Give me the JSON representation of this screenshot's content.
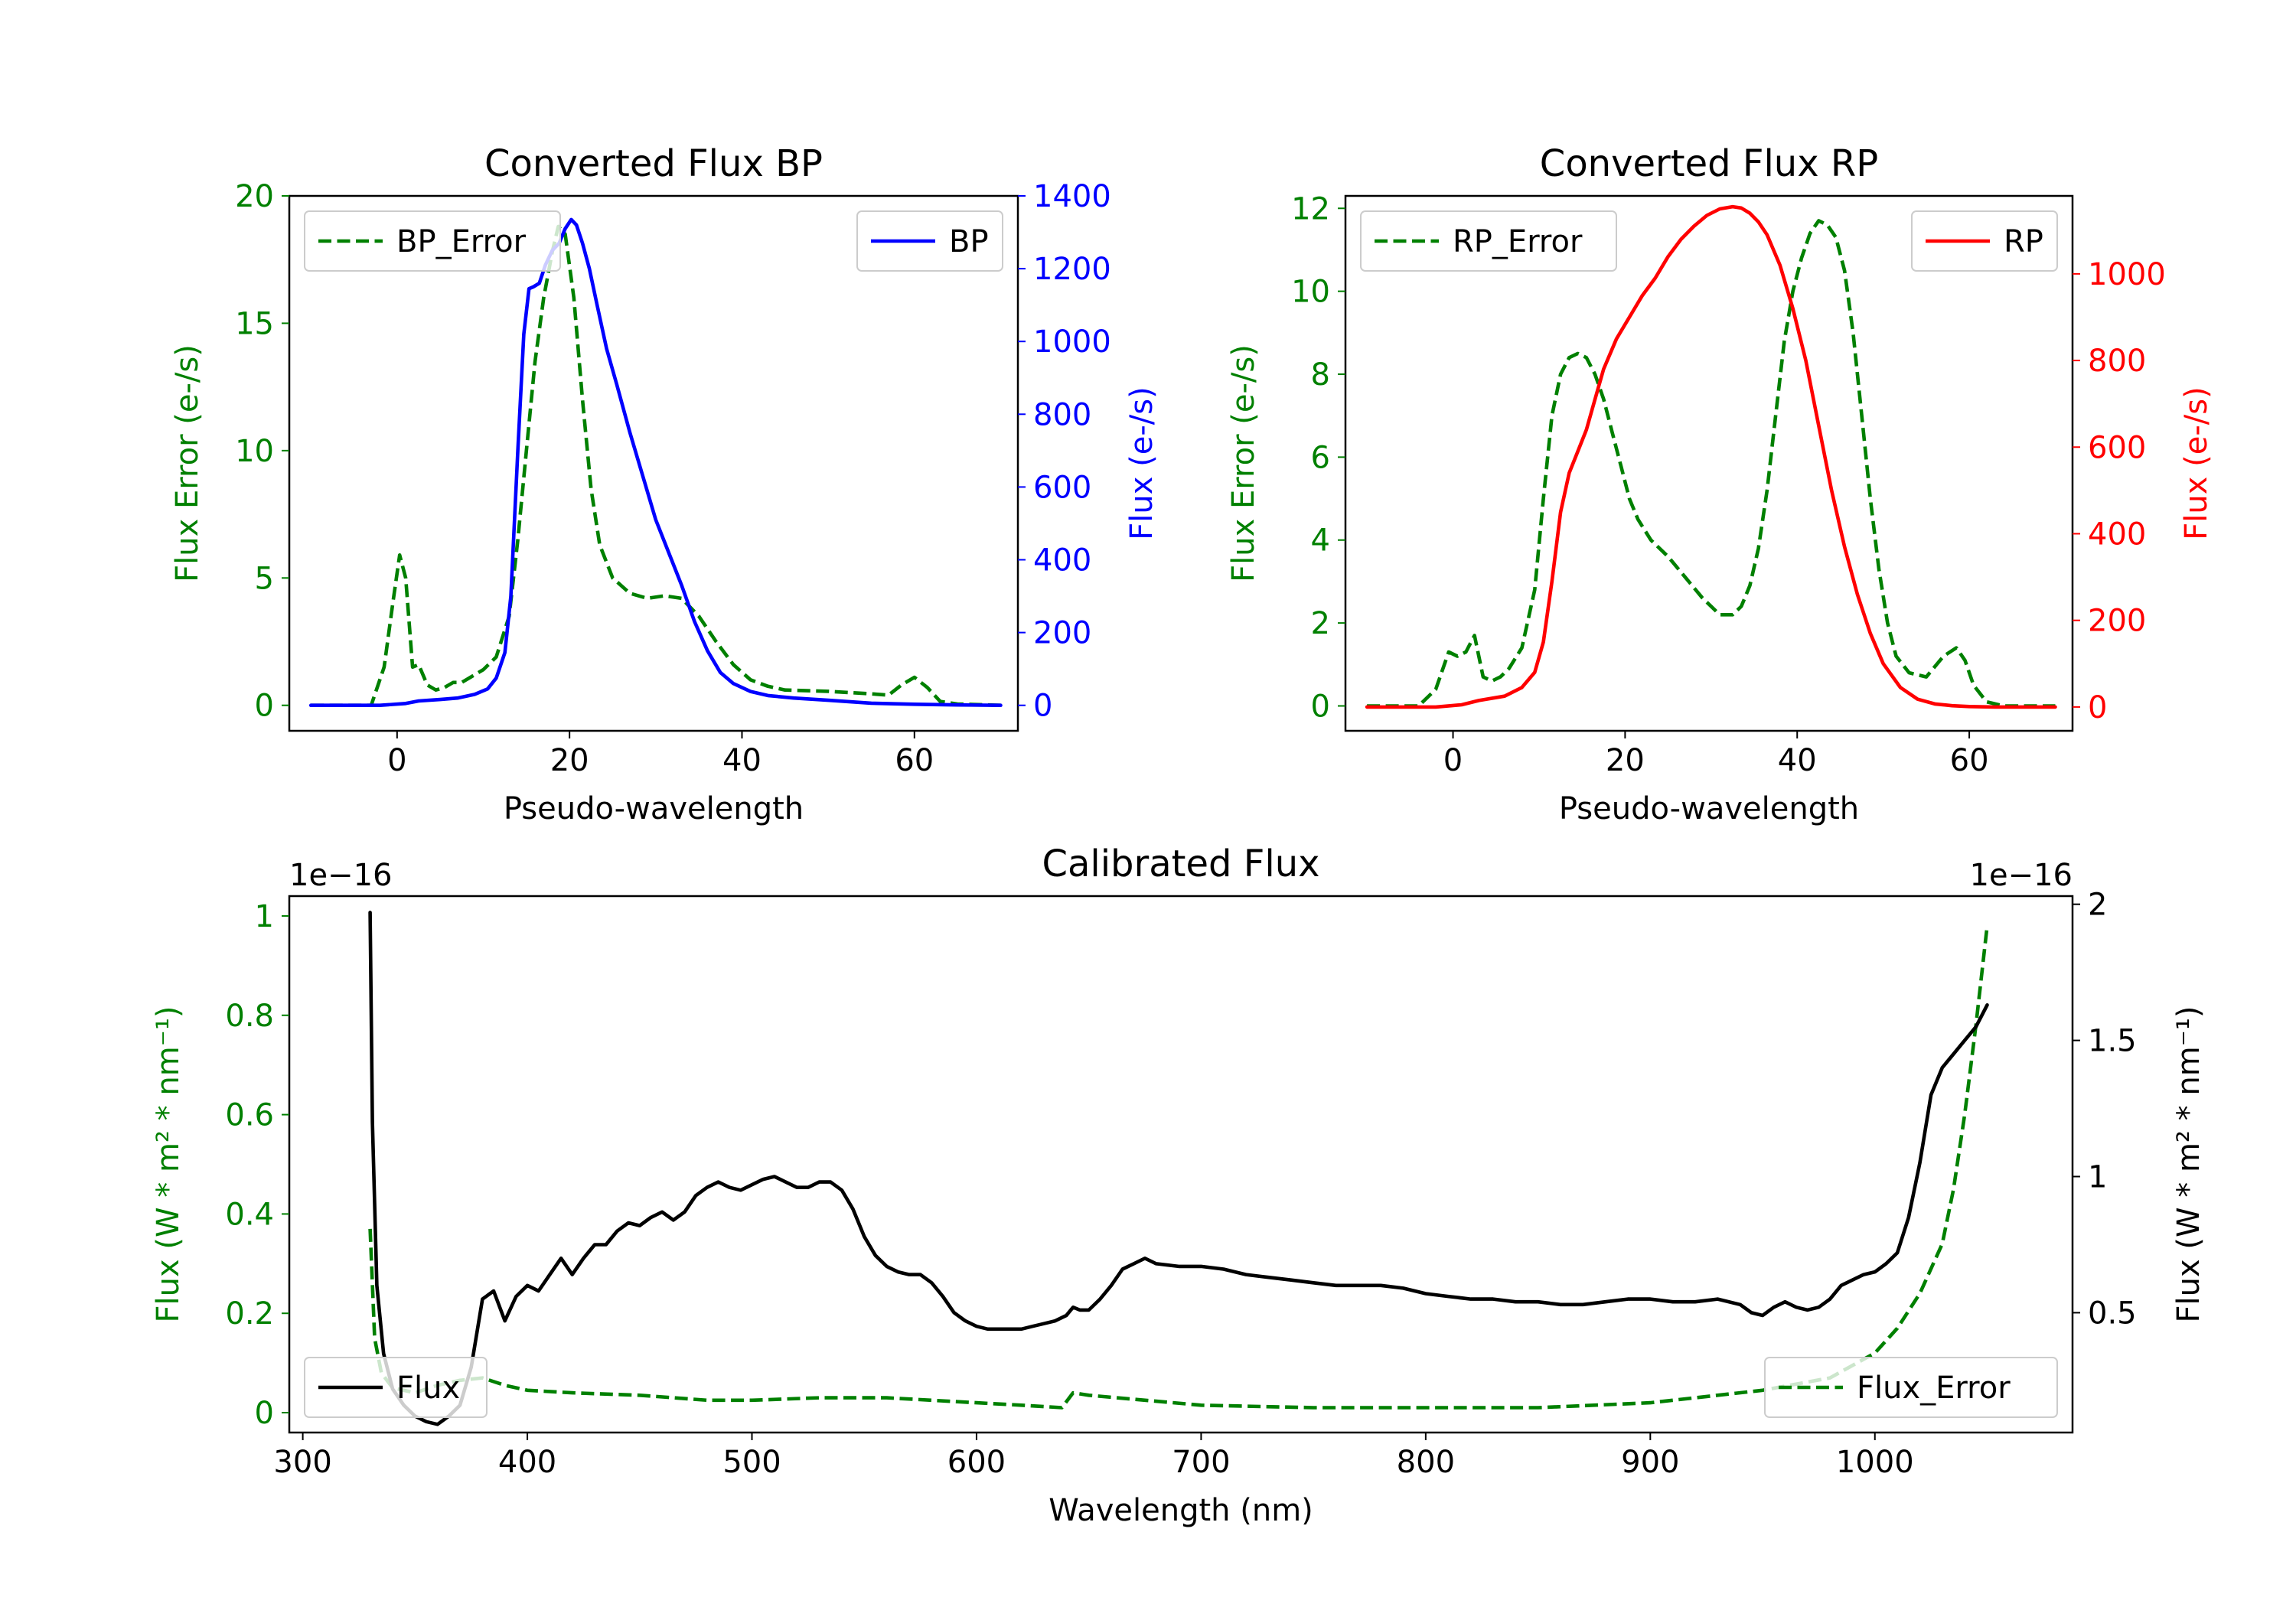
{
  "colors": {
    "error": "#008000",
    "bp": "#0000ff",
    "rp": "#ff0000",
    "flux": "#000000",
    "axis": "#000000",
    "legend_border": "#cccccc"
  },
  "chart_data": [
    {
      "id": "bp",
      "type": "line",
      "title": "Converted Flux BP",
      "xlabel": "Pseudo-wavelength",
      "ylabel_left": "Flux Error (e-/s)",
      "ylabel_right": "Flux (e-/s)",
      "xlim": [
        -12.5,
        72
      ],
      "ylim_left": [
        -1,
        20
      ],
      "ylim_right": [
        -70,
        1400
      ],
      "xticks": [
        0,
        20,
        40,
        60
      ],
      "yticks_left": [
        0,
        5,
        10,
        15,
        20
      ],
      "yticks_right": [
        0,
        200,
        400,
        600,
        800,
        1000,
        1200,
        1400
      ],
      "legend_left": {
        "label": "BP_Error",
        "location": "upper left"
      },
      "legend_right": {
        "label": "BP",
        "location": "upper right"
      },
      "series": [
        {
          "name": "BP_Error",
          "axis": "left",
          "style": "dashed",
          "color_key": "error",
          "x": [
            -10,
            -3,
            -1.5,
            -0.5,
            0.3,
            1,
            1.8,
            2.5,
            3.5,
            4.5,
            5.5,
            6.5,
            7.5,
            8.5,
            10,
            11.5,
            13,
            14,
            15,
            16,
            17,
            18,
            18.7,
            19.5,
            20.5,
            21.5,
            22.5,
            23.5,
            25,
            27,
            29,
            31,
            33,
            35,
            37,
            39,
            41,
            43,
            45,
            50,
            55,
            57,
            58.5,
            60,
            61.5,
            63,
            65,
            70
          ],
          "y": [
            0,
            0,
            1.5,
            4,
            5.9,
            5,
            1.5,
            1.6,
            0.8,
            0.6,
            0.7,
            0.9,
            0.9,
            1.1,
            1.4,
            1.9,
            3.5,
            6.5,
            10,
            13.5,
            16,
            17.8,
            18.8,
            18.5,
            16,
            12,
            8.5,
            6.3,
            5,
            4.4,
            4.2,
            4.3,
            4.2,
            3.5,
            2.5,
            1.6,
            1.0,
            0.75,
            0.6,
            0.55,
            0.45,
            0.4,
            0.8,
            1.1,
            0.7,
            0.15,
            0.05,
            0
          ]
        },
        {
          "name": "BP",
          "axis": "right",
          "style": "solid",
          "color_key": "bp",
          "x": [
            -10,
            -2,
            1,
            2.5,
            5,
            7,
            9,
            10.5,
            11.5,
            12.5,
            13.2,
            14,
            14.7,
            15.3,
            15.8,
            16.5,
            17.2,
            18,
            18.8,
            19.5,
            20.2,
            20.8,
            21.5,
            22.3,
            23.2,
            24.3,
            25.5,
            27,
            28.5,
            30,
            31.5,
            33,
            34.5,
            36,
            37.5,
            39,
            41,
            43,
            46,
            50,
            55,
            60,
            65,
            70
          ],
          "y": [
            0,
            0,
            5,
            12,
            16,
            20,
            30,
            45,
            75,
            145,
            300,
            700,
            1020,
            1145,
            1150,
            1160,
            1210,
            1250,
            1270,
            1310,
            1335,
            1320,
            1270,
            1200,
            1100,
            980,
            880,
            750,
            630,
            510,
            420,
            330,
            230,
            150,
            90,
            60,
            38,
            27,
            20,
            14,
            6,
            3,
            1,
            0
          ]
        }
      ]
    },
    {
      "id": "rp",
      "type": "line",
      "title": "Converted Flux RP",
      "xlabel": "Pseudo-wavelength",
      "ylabel_left": "Flux Error (e-/s)",
      "ylabel_right": "Flux (e-/s)",
      "xlim": [
        -12.5,
        72
      ],
      "ylim_left": [
        -0.6,
        12.3
      ],
      "ylim_right": [
        -55,
        1180
      ],
      "xticks": [
        0,
        20,
        40,
        60
      ],
      "yticks_left": [
        0,
        2,
        4,
        6,
        8,
        10,
        12
      ],
      "yticks_right": [
        0,
        200,
        400,
        600,
        800,
        1000
      ],
      "legend_left": {
        "label": "RP_Error",
        "location": "upper left"
      },
      "legend_right": {
        "label": "RP",
        "location": "upper right"
      },
      "series": [
        {
          "name": "RP_Error",
          "axis": "left",
          "style": "dashed",
          "color_key": "error",
          "x": [
            -10,
            -4,
            -2,
            -0.5,
            0.5,
            1.5,
            2.5,
            3.5,
            4.5,
            5.5,
            6.5,
            8,
            9.5,
            10.5,
            11.5,
            12.5,
            13.5,
            14.5,
            15.5,
            16.5,
            17.5,
            18.5,
            19.5,
            20.5,
            21.5,
            23,
            25,
            27,
            29,
            31,
            32.5,
            33.5,
            34.5,
            35.5,
            36.5,
            37.5,
            38.5,
            39.5,
            40.5,
            41.5,
            42.5,
            43.5,
            44.5,
            45.5,
            46.5,
            47.5,
            48.5,
            49.5,
            50.5,
            51.5,
            53,
            55,
            57,
            58.5,
            59.5,
            60.5,
            62,
            64,
            70
          ],
          "y": [
            0,
            0,
            0.4,
            1.3,
            1.2,
            1.3,
            1.7,
            0.7,
            0.6,
            0.7,
            0.9,
            1.4,
            2.8,
            5.0,
            7.0,
            8.0,
            8.4,
            8.5,
            8.4,
            8.0,
            7.4,
            6.6,
            5.8,
            5.0,
            4.5,
            4.0,
            3.6,
            3.1,
            2.6,
            2.2,
            2.2,
            2.4,
            2.9,
            3.8,
            5.2,
            7.0,
            8.8,
            10.0,
            10.8,
            11.4,
            11.7,
            11.6,
            11.3,
            10.5,
            9.0,
            7.0,
            5.0,
            3.3,
            2.0,
            1.2,
            0.8,
            0.7,
            1.2,
            1.4,
            1.1,
            0.5,
            0.1,
            0,
            0
          ]
        },
        {
          "name": "RP",
          "axis": "right",
          "style": "solid",
          "color_key": "rp",
          "x": [
            -10,
            -2,
            1,
            3,
            6,
            8,
            9.5,
            10.5,
            11.5,
            12.5,
            13.5,
            14.5,
            15.5,
            16.5,
            17.5,
            19,
            20.5,
            22,
            23.5,
            25,
            26.5,
            28,
            29.5,
            31,
            32.5,
            33.5,
            34.5,
            35.5,
            36.5,
            38,
            39.5,
            41,
            42.5,
            44,
            45.5,
            47,
            48.5,
            50,
            52,
            54,
            56,
            58,
            60,
            63,
            66,
            70
          ],
          "y": [
            0,
            0,
            5,
            15,
            25,
            45,
            80,
            150,
            290,
            450,
            540,
            590,
            640,
            710,
            780,
            850,
            900,
            950,
            990,
            1040,
            1080,
            1110,
            1135,
            1150,
            1155,
            1152,
            1140,
            1120,
            1090,
            1020,
            920,
            800,
            650,
            500,
            370,
            260,
            170,
            100,
            45,
            18,
            7,
            3,
            1,
            0,
            0,
            0
          ]
        }
      ]
    },
    {
      "id": "cal",
      "type": "line",
      "title": "Calibrated Flux",
      "xlabel": "Wavelength (nm)",
      "ylabel_left": "Flux (W * m² * nm⁻¹)",
      "ylabel_right": "Flux (W * m² * nm⁻¹)",
      "offset_left": "1e−16",
      "offset_right": "1e−16",
      "xlim": [
        294,
        1088
      ],
      "ylim_left": [
        -0.04,
        1.04
      ],
      "ylim_right": [
        0.06,
        2.03
      ],
      "xticks": [
        300,
        400,
        500,
        600,
        700,
        800,
        900,
        1000
      ],
      "yticks_left": [
        0.0,
        0.2,
        0.4,
        0.6,
        0.8,
        1.0
      ],
      "yticks_right": [
        0.5,
        1.0,
        1.5,
        2.0
      ],
      "legend_left": {
        "label": "Flux",
        "location": "lower left"
      },
      "legend_right": {
        "label": "Flux_Error",
        "location": "lower right"
      },
      "series": [
        {
          "name": "Flux_Error",
          "axis": "left",
          "style": "dashed",
          "color_key": "error",
          "x": [
            330,
            332,
            335,
            340,
            350,
            360,
            370,
            380,
            390,
            400,
            420,
            450,
            480,
            500,
            530,
            560,
            600,
            620,
            638,
            643,
            650,
            700,
            750,
            800,
            850,
            900,
            950,
            980,
            1000,
            1010,
            1020,
            1030,
            1035,
            1040,
            1045,
            1048,
            1050
          ],
          "y": [
            0.37,
            0.15,
            0.08,
            0.05,
            0.04,
            0.055,
            0.065,
            0.07,
            0.055,
            0.045,
            0.04,
            0.035,
            0.025,
            0.025,
            0.03,
            0.03,
            0.02,
            0.015,
            0.01,
            0.04,
            0.035,
            0.015,
            0.01,
            0.01,
            0.01,
            0.02,
            0.045,
            0.07,
            0.12,
            0.17,
            0.24,
            0.34,
            0.45,
            0.6,
            0.78,
            0.9,
            0.98
          ]
        },
        {
          "name": "Flux",
          "axis": "right",
          "style": "solid",
          "color_key": "flux",
          "x": [
            330,
            331,
            333,
            336,
            340,
            345,
            350,
            355,
            360,
            365,
            370,
            375,
            380,
            385,
            390,
            395,
            400,
            405,
            410,
            415,
            420,
            425,
            430,
            435,
            440,
            445,
            450,
            455,
            460,
            465,
            470,
            475,
            480,
            485,
            490,
            495,
            500,
            505,
            510,
            515,
            520,
            525,
            530,
            535,
            540,
            545,
            550,
            555,
            560,
            565,
            570,
            575,
            580,
            585,
            590,
            595,
            600,
            605,
            610,
            615,
            620,
            625,
            630,
            635,
            640,
            643,
            646,
            650,
            655,
            660,
            665,
            670,
            675,
            680,
            690,
            700,
            710,
            720,
            730,
            740,
            750,
            760,
            770,
            780,
            790,
            800,
            810,
            820,
            830,
            840,
            850,
            860,
            870,
            880,
            890,
            900,
            910,
            920,
            930,
            940,
            945,
            950,
            955,
            960,
            965,
            970,
            975,
            980,
            985,
            990,
            995,
            1000,
            1005,
            1010,
            1015,
            1020,
            1025,
            1030,
            1035,
            1040,
            1045,
            1050
          ],
          "y": [
            1.97,
            1.2,
            0.6,
            0.35,
            0.22,
            0.16,
            0.12,
            0.1,
            0.09,
            0.12,
            0.16,
            0.3,
            0.55,
            0.58,
            0.47,
            0.56,
            0.6,
            0.58,
            0.64,
            0.7,
            0.64,
            0.7,
            0.75,
            0.75,
            0.8,
            0.83,
            0.82,
            0.85,
            0.87,
            0.84,
            0.87,
            0.93,
            0.96,
            0.98,
            0.96,
            0.95,
            0.97,
            0.99,
            1.0,
            0.98,
            0.96,
            0.96,
            0.98,
            0.98,
            0.95,
            0.88,
            0.78,
            0.71,
            0.67,
            0.65,
            0.64,
            0.64,
            0.61,
            0.56,
            0.5,
            0.47,
            0.45,
            0.44,
            0.44,
            0.44,
            0.44,
            0.45,
            0.46,
            0.47,
            0.49,
            0.52,
            0.51,
            0.51,
            0.55,
            0.6,
            0.66,
            0.68,
            0.7,
            0.68,
            0.67,
            0.67,
            0.66,
            0.64,
            0.63,
            0.62,
            0.61,
            0.6,
            0.6,
            0.6,
            0.59,
            0.57,
            0.56,
            0.55,
            0.55,
            0.54,
            0.54,
            0.53,
            0.53,
            0.54,
            0.55,
            0.55,
            0.54,
            0.54,
            0.55,
            0.53,
            0.5,
            0.49,
            0.52,
            0.54,
            0.52,
            0.51,
            0.52,
            0.55,
            0.6,
            0.62,
            0.64,
            0.65,
            0.68,
            0.72,
            0.85,
            1.05,
            1.3,
            1.4,
            1.45,
            1.5,
            1.55,
            1.63
          ]
        }
      ]
    }
  ]
}
